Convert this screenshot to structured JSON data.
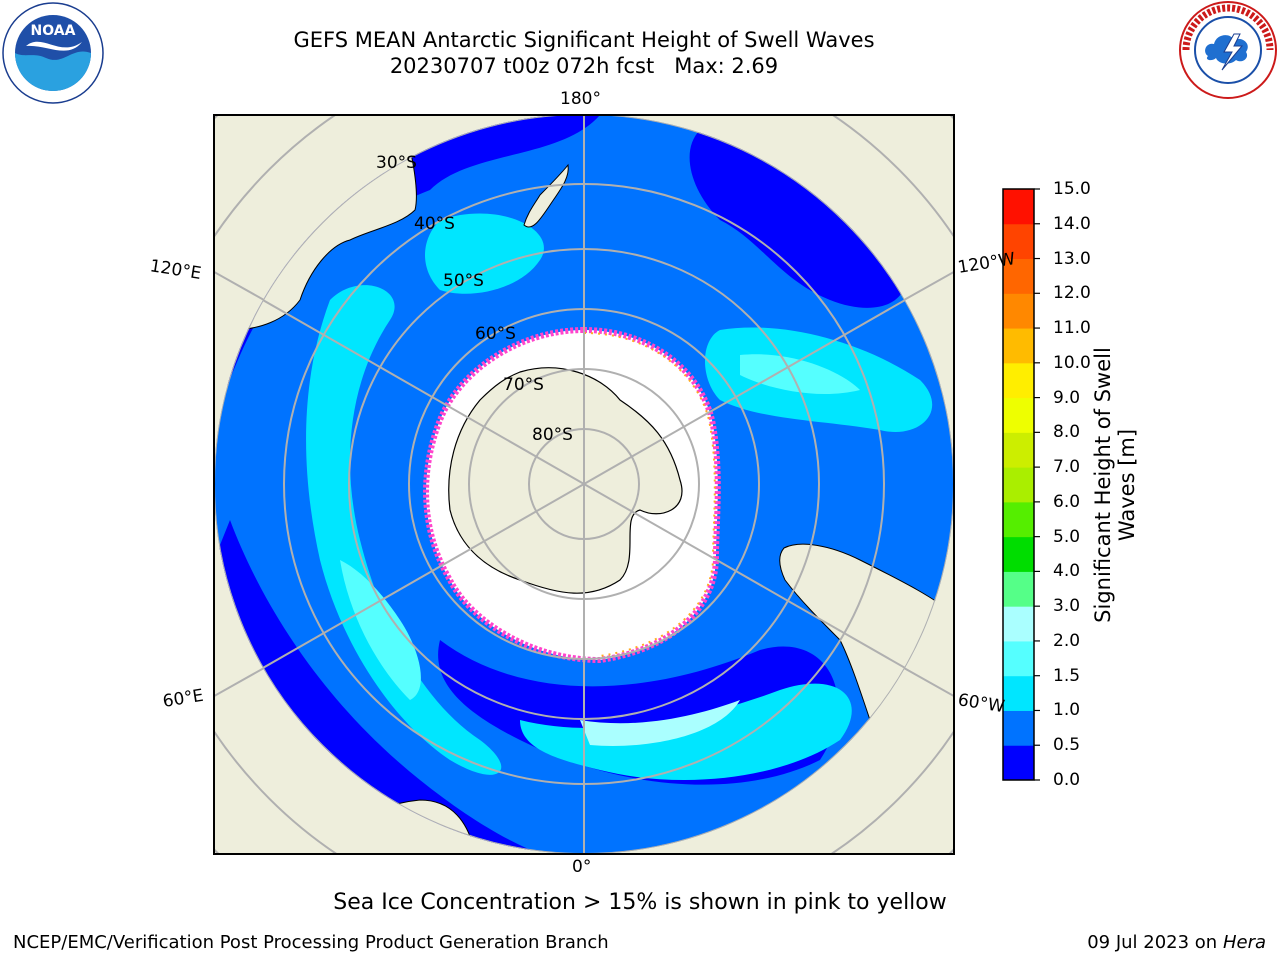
{
  "header": {
    "title_line1": "GEFS MEAN Antarctic Significant Height of Swell Waves",
    "title_line2": "20230707 t00z 072h fcst   Max: 2.69"
  },
  "logos": {
    "left": {
      "name": "noaa-logo",
      "text": "NOAA",
      "ring_text": "NATIONAL OCEANIC AND ATMOSPHERIC ADMINISTRATION · U.S. DEPARTMENT OF COMMERCE"
    },
    "right": {
      "name": "nws-logo",
      "ring_text": "NATIONAL WEATHER SERVICE"
    }
  },
  "map": {
    "projection": "south-polar-stereographic",
    "longitude_labels": {
      "top": "180°",
      "bottom": "0°",
      "left_upper": "120°E",
      "left_lower": "60°E",
      "right_upper": "120°W",
      "right_lower": "60°W"
    },
    "latitude_labels": [
      "30°S",
      "40°S",
      "50°S",
      "60°S",
      "70°S",
      "80°S"
    ],
    "land_color": "#eeeedc",
    "sea_ice_color": "#ffffff",
    "sea_ice_edge_colors": [
      "#ff44cc",
      "#ffaa22"
    ]
  },
  "colorbar": {
    "label": "Significant Height of Swell Waves [m]",
    "ticks": [
      "0.0",
      "0.5",
      "1.0",
      "1.5",
      "2.0",
      "3.0",
      "4.0",
      "5.0",
      "6.0",
      "7.0",
      "8.0",
      "9.0",
      "10.0",
      "11.0",
      "12.0",
      "13.0",
      "14.0",
      "15.0"
    ],
    "colors": [
      "#0000ff",
      "#0073ff",
      "#00e6ff",
      "#55ffff",
      "#aaffff",
      "#55ff88",
      "#00dd00",
      "#55ee00",
      "#aaee00",
      "#ccee00",
      "#eeff00",
      "#ffee00",
      "#ffbb00",
      "#ff8800",
      "#ff6600",
      "#ff4400",
      "#ff1100"
    ]
  },
  "note": "Sea Ice Concentration > 15% is shown in pink to yellow",
  "footer": {
    "left": "NCEP/EMC/Verification Post Processing Product Generation Branch",
    "right_prefix": "09 Jul 2023 on ",
    "right_host": "Hera"
  }
}
